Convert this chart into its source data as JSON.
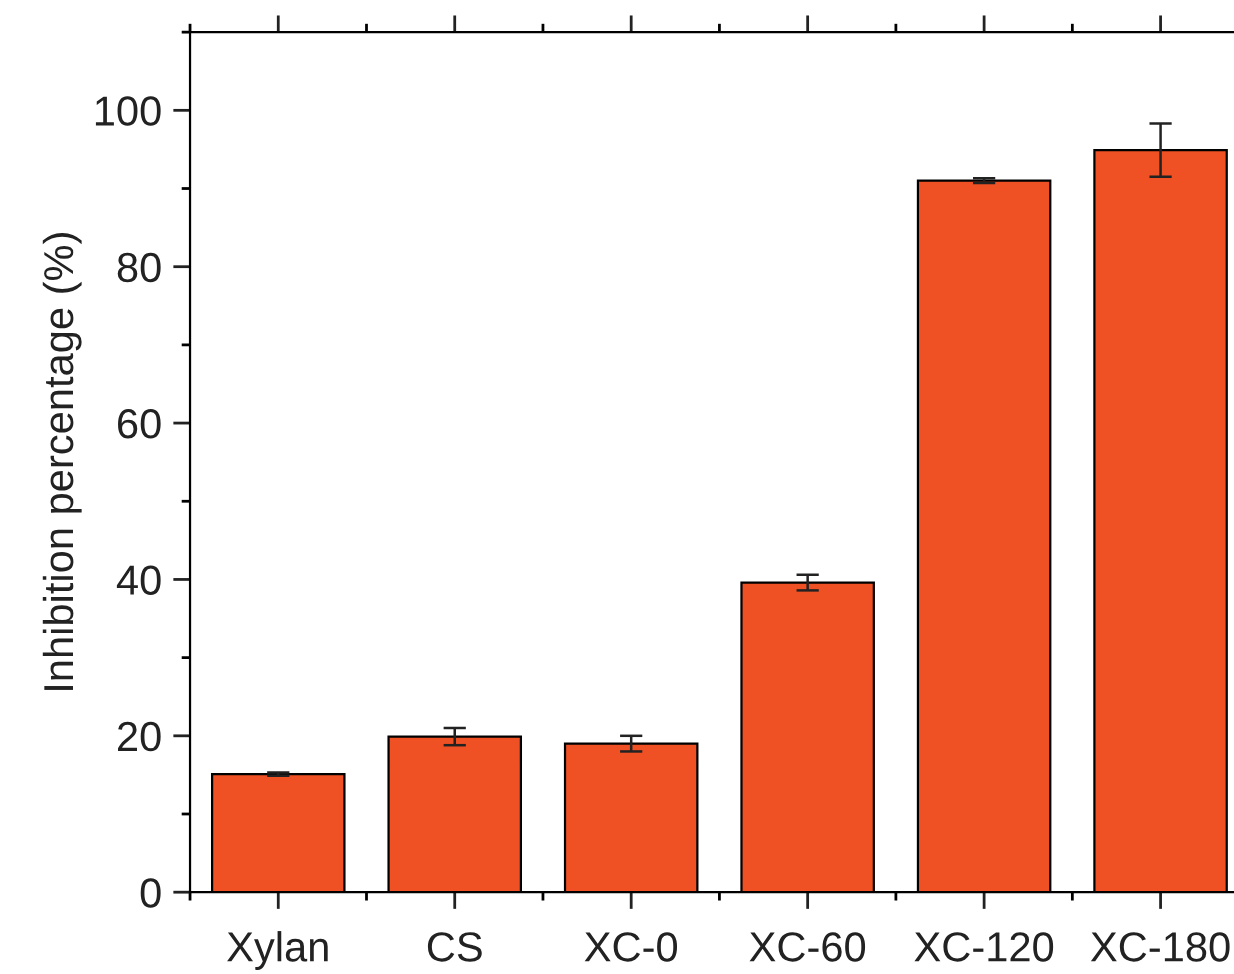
{
  "chart_data": {
    "type": "bar",
    "ylabel": "Inhibition percentage (%)",
    "categories": [
      "Xylan",
      "CS",
      "XC-0",
      "XC-60",
      "XC-120",
      "XC-180"
    ],
    "values": [
      15.1,
      19.9,
      19.0,
      39.6,
      91.0,
      94.9
    ],
    "errors": [
      0.2,
      1.1,
      1.0,
      1.0,
      0.3,
      3.4
    ],
    "color": "#ef5124",
    "ylim": [
      0,
      110
    ],
    "yticks": [
      0,
      20,
      40,
      60,
      80,
      100
    ],
    "grid": false
  }
}
